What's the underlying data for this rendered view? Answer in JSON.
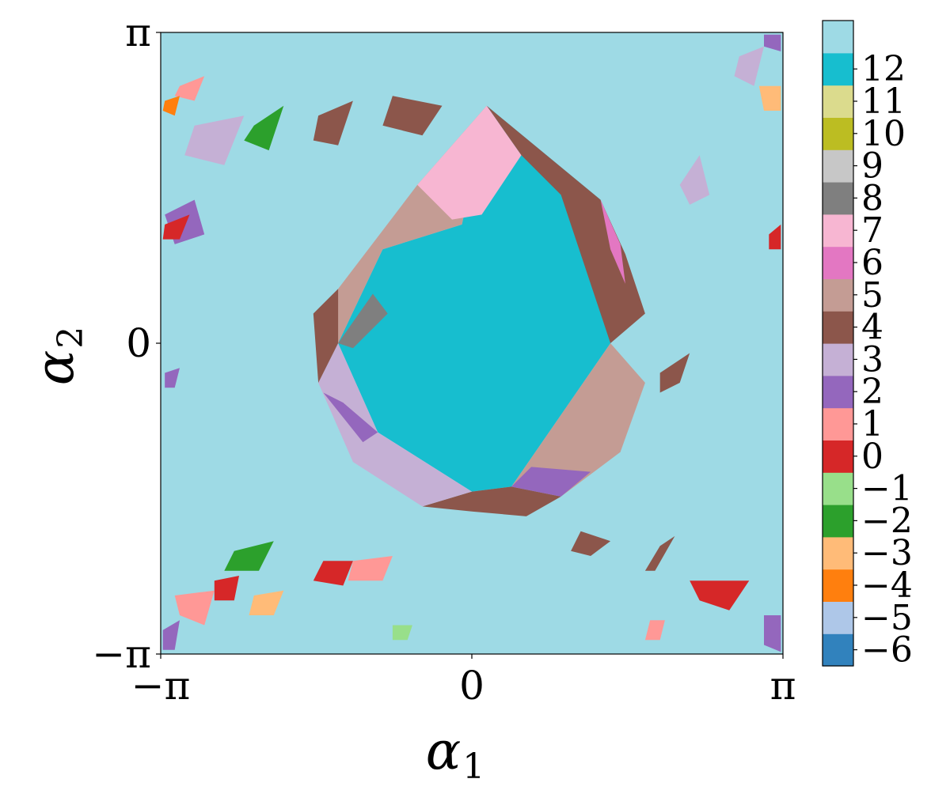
{
  "chart_data": {
    "type": "heatmap",
    "title": "",
    "xlabel": "α",
    "xlabel_sub": "1",
    "ylabel": "α",
    "ylabel_sub": "2",
    "xlim": [
      -3.14159,
      3.14159
    ],
    "ylim": [
      -3.14159,
      3.14159
    ],
    "x_ticks": [
      {
        "value": -3.14159,
        "label": "−π"
      },
      {
        "value": 0,
        "label": "0"
      },
      {
        "value": 3.14159,
        "label": "π"
      }
    ],
    "y_ticks": [
      {
        "value": -3.14159,
        "label": "−π"
      },
      {
        "value": 0,
        "label": "0"
      },
      {
        "value": 3.14159,
        "label": "π"
      }
    ],
    "grid": false,
    "background_value": 13,
    "colorbar": {
      "levels": [
        {
          "value": -6,
          "label": "−6",
          "color": "#3182bd"
        },
        {
          "value": -5,
          "label": "−5",
          "color": "#aec7e8"
        },
        {
          "value": -4,
          "label": "−4",
          "color": "#ff7f0e"
        },
        {
          "value": -3,
          "label": "−3",
          "color": "#ffbb78"
        },
        {
          "value": -2,
          "label": "−2",
          "color": "#2ca02c"
        },
        {
          "value": -1,
          "label": "−1",
          "color": "#98df8a"
        },
        {
          "value": 0,
          "label": "0",
          "color": "#d62728"
        },
        {
          "value": 1,
          "label": "1",
          "color": "#ff9896"
        },
        {
          "value": 2,
          "label": "2",
          "color": "#9467bd"
        },
        {
          "value": 3,
          "label": "3",
          "color": "#c5b0d5"
        },
        {
          "value": 4,
          "label": "4",
          "color": "#8c564b"
        },
        {
          "value": 5,
          "label": "5",
          "color": "#c49c94"
        },
        {
          "value": 6,
          "label": "6",
          "color": "#e377c2"
        },
        {
          "value": 7,
          "label": "7",
          "color": "#f7b6d2"
        },
        {
          "value": 8,
          "label": "8",
          "color": "#7f7f7f"
        },
        {
          "value": 9,
          "label": "9",
          "color": "#c7c7c7"
        },
        {
          "value": 10,
          "label": "10",
          "color": "#bcbd22"
        },
        {
          "value": 11,
          "label": "11",
          "color": "#dbdb8d"
        },
        {
          "value": 12,
          "label": "12",
          "color": "#17becf"
        },
        {
          "value": 13,
          "label": "",
          "color": "#9edae5"
        }
      ]
    },
    "regions": [
      {
        "name": "central-region",
        "value": 12,
        "points": [
          [
            0.15,
            2.4
          ],
          [
            1.3,
            1.45
          ],
          [
            1.4,
            0
          ],
          [
            0.4,
            -1.45
          ],
          [
            0,
            -1.5
          ],
          [
            -0.95,
            -0.9
          ],
          [
            -1.35,
            0
          ],
          [
            -0.9,
            0.95
          ],
          [
            -0.1,
            1.2
          ]
        ]
      },
      {
        "name": "ring-region-nw",
        "value": 5,
        "points": [
          [
            -1.35,
            0
          ],
          [
            -0.9,
            0.95
          ],
          [
            -0.1,
            1.2
          ],
          [
            0.15,
            2.4
          ],
          [
            -0.55,
            1.6
          ],
          [
            -1.35,
            0.55
          ],
          [
            -1.55,
            0
          ]
        ]
      },
      {
        "name": "ring-region-ne",
        "value": 4,
        "points": [
          [
            0.15,
            2.4
          ],
          [
            1.3,
            1.45
          ],
          [
            1.55,
            0.9
          ],
          [
            1.75,
            0.3
          ],
          [
            1.4,
            0
          ],
          [
            0.9,
            1.5
          ],
          [
            0.5,
            1.9
          ]
        ]
      },
      {
        "name": "ring-region-se",
        "value": 5,
        "points": [
          [
            1.4,
            0
          ],
          [
            1.75,
            -0.4
          ],
          [
            1.5,
            -1.1
          ],
          [
            0.9,
            -1.55
          ],
          [
            0.4,
            -1.45
          ]
        ]
      },
      {
        "name": "ring-region-s",
        "value": 4,
        "points": [
          [
            0.4,
            -1.45
          ],
          [
            0.9,
            -1.55
          ],
          [
            0.55,
            -1.75
          ],
          [
            0,
            -1.7
          ],
          [
            -0.5,
            -1.65
          ],
          [
            0,
            -1.5
          ]
        ]
      },
      {
        "name": "ring-region-sw",
        "value": 3,
        "points": [
          [
            0,
            -1.5
          ],
          [
            -0.5,
            -1.65
          ],
          [
            -1.2,
            -1.2
          ],
          [
            -1.55,
            -0.4
          ],
          [
            -1.35,
            0
          ],
          [
            -0.95,
            -0.9
          ]
        ]
      },
      {
        "name": "ring-region-w",
        "value": 4,
        "points": [
          [
            -1.35,
            0
          ],
          [
            -1.55,
            -0.4
          ],
          [
            -1.6,
            0.3
          ],
          [
            -1.35,
            0.55
          ]
        ]
      },
      {
        "name": "ring-region-top",
        "value": 7,
        "points": [
          [
            -0.55,
            1.6
          ],
          [
            0.15,
            2.4
          ],
          [
            0.5,
            1.9
          ],
          [
            0.1,
            1.3
          ],
          [
            -0.2,
            1.25
          ]
        ]
      },
      {
        "name": "ring-region-gray",
        "value": 8,
        "points": [
          [
            -1.35,
            0
          ],
          [
            -1.0,
            0.5
          ],
          [
            -0.85,
            0.3
          ],
          [
            -1.2,
            -0.05
          ]
        ]
      },
      {
        "name": "ring-region-pink",
        "value": 6,
        "points": [
          [
            1.3,
            1.45
          ],
          [
            1.5,
            1.0
          ],
          [
            1.55,
            0.6
          ],
          [
            1.4,
            0.95
          ]
        ]
      },
      {
        "name": "ring-region-purple-s",
        "value": 2,
        "points": [
          [
            0.4,
            -1.45
          ],
          [
            0.9,
            -1.55
          ],
          [
            1.2,
            -1.3
          ],
          [
            0.6,
            -1.25
          ]
        ]
      },
      {
        "name": "ring-region-purple-sw",
        "value": 2,
        "points": [
          [
            -0.95,
            -0.9
          ],
          [
            -1.3,
            -0.6
          ],
          [
            -1.5,
            -0.5
          ],
          [
            -1.1,
            -1.0
          ]
        ]
      },
      {
        "name": "patch-1",
        "value": -2,
        "points": [
          [
            -2.2,
            2.2
          ],
          [
            -1.9,
            2.4
          ],
          [
            -2.05,
            1.95
          ],
          [
            -2.3,
            2.05
          ]
        ]
      },
      {
        "name": "patch-2",
        "value": 2,
        "points": [
          [
            -3.1,
            1.3
          ],
          [
            -2.8,
            1.45
          ],
          [
            -2.7,
            1.1
          ],
          [
            -3.0,
            1.0
          ]
        ]
      },
      {
        "name": "patch-3",
        "value": 0,
        "points": [
          [
            -3.1,
            1.2
          ],
          [
            -2.85,
            1.3
          ],
          [
            -2.95,
            1.05
          ],
          [
            -3.12,
            1.05
          ]
        ]
      },
      {
        "name": "patch-4",
        "value": 3,
        "points": [
          [
            -2.8,
            2.2
          ],
          [
            -2.3,
            2.3
          ],
          [
            -2.5,
            1.8
          ],
          [
            -2.9,
            1.9
          ]
        ]
      },
      {
        "name": "patch-5",
        "value": 4,
        "points": [
          [
            -1.55,
            2.3
          ],
          [
            -1.2,
            2.45
          ],
          [
            -1.35,
            2.0
          ],
          [
            -1.6,
            2.05
          ]
        ]
      },
      {
        "name": "patch-6",
        "value": 4,
        "points": [
          [
            -0.8,
            2.5
          ],
          [
            -0.3,
            2.4
          ],
          [
            -0.5,
            2.1
          ],
          [
            -0.9,
            2.2
          ]
        ]
      },
      {
        "name": "patch-7",
        "value": 1,
        "points": [
          [
            -2.95,
            2.6
          ],
          [
            -2.7,
            2.7
          ],
          [
            -2.8,
            2.45
          ],
          [
            -3.0,
            2.5
          ]
        ]
      },
      {
        "name": "patch-8",
        "value": -4,
        "points": [
          [
            -3.1,
            2.45
          ],
          [
            -2.95,
            2.5
          ],
          [
            -3.0,
            2.3
          ],
          [
            -3.12,
            2.35
          ]
        ]
      },
      {
        "name": "patch-9",
        "value": -3,
        "points": [
          [
            2.9,
            2.6
          ],
          [
            3.12,
            2.6
          ],
          [
            3.12,
            2.35
          ],
          [
            2.95,
            2.35
          ]
        ]
      },
      {
        "name": "patch-10",
        "value": 3,
        "points": [
          [
            2.1,
            1.6
          ],
          [
            2.3,
            1.9
          ],
          [
            2.4,
            1.5
          ],
          [
            2.2,
            1.4
          ]
        ]
      },
      {
        "name": "patch-11",
        "value": 0,
        "points": [
          [
            3.0,
            1.1
          ],
          [
            3.12,
            1.2
          ],
          [
            3.12,
            0.95
          ],
          [
            3.0,
            0.95
          ]
        ]
      },
      {
        "name": "patch-12",
        "value": 4,
        "points": [
          [
            1.9,
            -0.3
          ],
          [
            2.2,
            -0.1
          ],
          [
            2.1,
            -0.4
          ],
          [
            1.9,
            -0.5
          ]
        ]
      },
      {
        "name": "patch-13",
        "value": 3,
        "points": [
          [
            2.7,
            2.9
          ],
          [
            2.95,
            3.0
          ],
          [
            2.85,
            2.6
          ],
          [
            2.65,
            2.7
          ]
        ]
      },
      {
        "name": "patch-14",
        "value": 0,
        "points": [
          [
            2.2,
            -2.4
          ],
          [
            2.8,
            -2.4
          ],
          [
            2.6,
            -2.7
          ],
          [
            2.3,
            -2.6
          ]
        ]
      },
      {
        "name": "patch-15",
        "value": 4,
        "points": [
          [
            1.9,
            -2.05
          ],
          [
            2.05,
            -1.95
          ],
          [
            1.85,
            -2.3
          ],
          [
            1.75,
            -2.3
          ]
        ]
      },
      {
        "name": "patch-16",
        "value": 1,
        "points": [
          [
            -3.0,
            -2.55
          ],
          [
            -2.6,
            -2.5
          ],
          [
            -2.7,
            -2.85
          ],
          [
            -2.95,
            -2.75
          ]
        ]
      },
      {
        "name": "patch-17",
        "value": -2,
        "points": [
          [
            -2.4,
            -2.1
          ],
          [
            -2.0,
            -2.0
          ],
          [
            -2.15,
            -2.3
          ],
          [
            -2.5,
            -2.3
          ]
        ]
      },
      {
        "name": "patch-18",
        "value": 0,
        "points": [
          [
            -1.5,
            -2.2
          ],
          [
            -1.2,
            -2.2
          ],
          [
            -1.3,
            -2.45
          ],
          [
            -1.6,
            -2.4
          ]
        ]
      },
      {
        "name": "patch-19",
        "value": 1,
        "points": [
          [
            -1.2,
            -2.2
          ],
          [
            -0.8,
            -2.15
          ],
          [
            -0.9,
            -2.4
          ],
          [
            -1.25,
            -2.4
          ]
        ]
      },
      {
        "name": "patch-20",
        "value": 0,
        "points": [
          [
            -2.6,
            -2.4
          ],
          [
            -2.35,
            -2.35
          ],
          [
            -2.4,
            -2.6
          ],
          [
            -2.6,
            -2.6
          ]
        ]
      },
      {
        "name": "patch-21",
        "value": 2,
        "points": [
          [
            -3.12,
            -2.9
          ],
          [
            -2.95,
            -2.8
          ],
          [
            -3.0,
            -3.1
          ],
          [
            -3.12,
            -3.1
          ]
        ]
      },
      {
        "name": "patch-22",
        "value": 2,
        "points": [
          [
            2.95,
            -2.75
          ],
          [
            3.12,
            -2.75
          ],
          [
            3.12,
            -3.12
          ],
          [
            2.95,
            -3.05
          ]
        ]
      },
      {
        "name": "patch-23",
        "value": 2,
        "points": [
          [
            3.12,
            3.12
          ],
          [
            2.95,
            3.12
          ],
          [
            2.95,
            3.0
          ],
          [
            3.12,
            2.95
          ]
        ]
      },
      {
        "name": "patch-24",
        "value": 2,
        "points": [
          [
            -3.1,
            -0.3
          ],
          [
            -2.95,
            -0.25
          ],
          [
            -3.0,
            -0.45
          ],
          [
            -3.1,
            -0.45
          ]
        ]
      },
      {
        "name": "patch-25",
        "value": -1,
        "points": [
          [
            -0.8,
            -2.85
          ],
          [
            -0.6,
            -2.85
          ],
          [
            -0.65,
            -3.0
          ],
          [
            -0.8,
            -3.0
          ]
        ]
      },
      {
        "name": "patch-26",
        "value": 1,
        "points": [
          [
            1.8,
            -2.8
          ],
          [
            1.95,
            -2.8
          ],
          [
            1.9,
            -3.0
          ],
          [
            1.75,
            -3.0
          ]
        ]
      },
      {
        "name": "patch-27",
        "value": -3,
        "points": [
          [
            -2.2,
            -2.55
          ],
          [
            -1.9,
            -2.5
          ],
          [
            -2.0,
            -2.75
          ],
          [
            -2.25,
            -2.75
          ]
        ]
      },
      {
        "name": "patch-28",
        "value": 4,
        "points": [
          [
            1.1,
            -1.9
          ],
          [
            1.4,
            -2.0
          ],
          [
            1.2,
            -2.15
          ],
          [
            1.0,
            -2.1
          ]
        ]
      }
    ]
  }
}
